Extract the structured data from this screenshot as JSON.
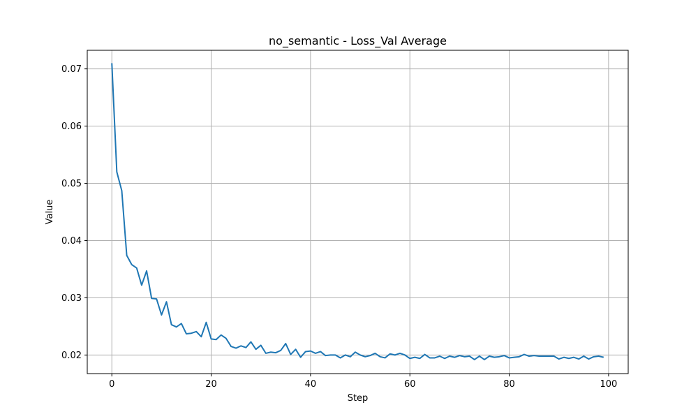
{
  "chart_data": {
    "type": "line",
    "title": "no_semantic - Loss_Val Average",
    "xlabel": "Step",
    "ylabel": "Value",
    "xlim": [
      -4.95,
      103.95
    ],
    "ylim": [
      0.01675,
      0.07325
    ],
    "xticks": [
      0,
      20,
      40,
      60,
      80,
      100
    ],
    "xtick_labels": [
      "0",
      "20",
      "40",
      "60",
      "80",
      "100"
    ],
    "yticks": [
      0.02,
      0.03,
      0.04,
      0.05,
      0.06,
      0.07
    ],
    "ytick_labels": [
      "0.02",
      "0.03",
      "0.04",
      "0.05",
      "0.06",
      "0.07"
    ],
    "grid": true,
    "line_color": "#1f77b4",
    "grid_color": "#b0b0b0",
    "series": [
      {
        "values": [
          0.071,
          0.052,
          0.0487,
          0.0374,
          0.0358,
          0.0352,
          0.0322,
          0.0347,
          0.0299,
          0.0298,
          0.027,
          0.0293,
          0.0253,
          0.0249,
          0.0255,
          0.0237,
          0.0238,
          0.0241,
          0.0232,
          0.0257,
          0.0228,
          0.0227,
          0.0235,
          0.0229,
          0.0215,
          0.0212,
          0.0216,
          0.0213,
          0.0223,
          0.021,
          0.0217,
          0.0203,
          0.0205,
          0.0204,
          0.0208,
          0.022,
          0.0201,
          0.021,
          0.0196,
          0.0206,
          0.0207,
          0.0203,
          0.0206,
          0.0199,
          0.02,
          0.02,
          0.0195,
          0.02,
          0.0197,
          0.0205,
          0.02,
          0.0197,
          0.0199,
          0.0203,
          0.0197,
          0.0195,
          0.0202,
          0.02,
          0.0203,
          0.02,
          0.0194,
          0.0196,
          0.0194,
          0.0201,
          0.0195,
          0.0195,
          0.0198,
          0.0194,
          0.0198,
          0.0196,
          0.0199,
          0.0197,
          0.0198,
          0.0192,
          0.0198,
          0.0192,
          0.0198,
          0.0196,
          0.0197,
          0.0199,
          0.0195,
          0.0196,
          0.0197,
          0.0201,
          0.0198,
          0.0199,
          0.0198,
          0.0198,
          0.0198,
          0.0198,
          0.0193,
          0.0196,
          0.0194,
          0.0196,
          0.0193,
          0.0198,
          0.0193,
          0.0197,
          0.0198,
          0.0196
        ]
      }
    ]
  }
}
